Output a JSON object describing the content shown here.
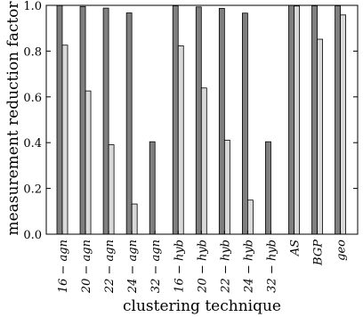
{
  "chart_data": {
    "type": "bar",
    "xlabel": "clustering technique",
    "ylabel": "measurement reduction factor",
    "ylim": [
      0,
      1.0
    ],
    "y_ticks": [
      "0.0",
      "0.2",
      "0.4",
      "0.6",
      "0.8",
      "1.0"
    ],
    "categories": [
      "16 − agn",
      "20 − agn",
      "22 − agn",
      "24 − agn",
      "32 − agn",
      "16 − hyb",
      "20 − hyb",
      "22 − hyb",
      "24 − hyb",
      "32 − hyb",
      "AS",
      "BGP",
      "geo"
    ],
    "series": [
      {
        "color": "#7f7f7f",
        "values": [
          0.999,
          0.995,
          0.988,
          0.967,
          0.404,
          0.998,
          0.993,
          0.987,
          0.966,
          0.404,
          1.0,
          0.998,
          0.998
        ]
      },
      {
        "color": "#d9d9d9",
        "values": [
          0.826,
          0.626,
          0.391,
          0.132,
          0.0,
          0.823,
          0.639,
          0.411,
          0.149,
          0.0,
          0.997,
          0.852,
          0.958
        ]
      }
    ],
    "grid": false
  }
}
